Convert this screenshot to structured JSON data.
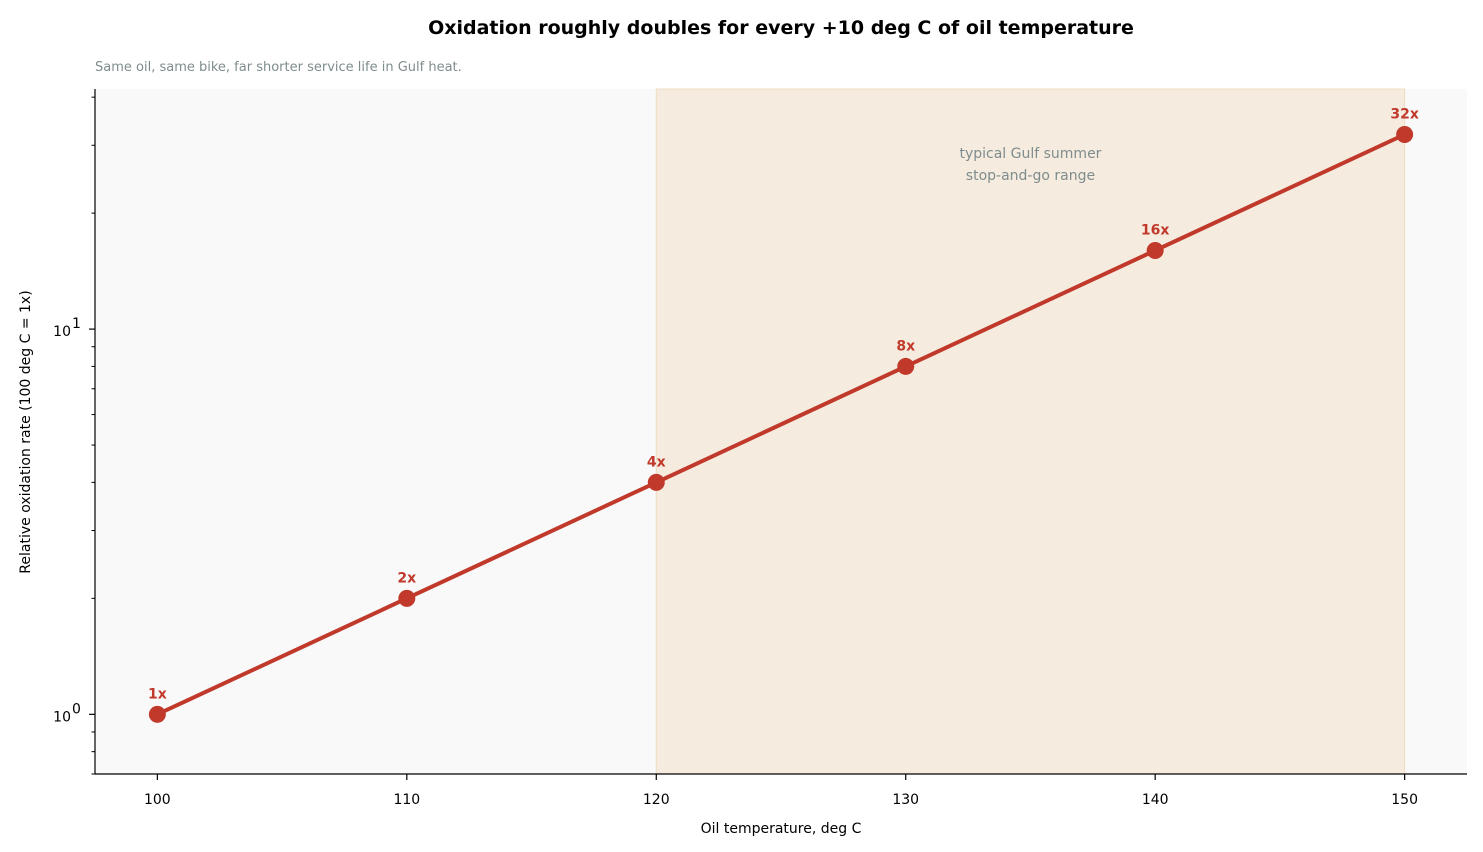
{
  "chart_data": {
    "type": "line",
    "title": "Oxidation roughly doubles for every +10 deg C of oil temperature",
    "subtitle": "Same oil, same bike, far shorter service life in Gulf heat.",
    "xlabel": "Oil temperature, deg C",
    "ylabel": "Relative oxidation rate (100 deg C = 1x)",
    "x": [
      100,
      110,
      120,
      130,
      140,
      150
    ],
    "series": [
      {
        "values": [
          1,
          2,
          4,
          8,
          16,
          32
        ],
        "labels": [
          "1x",
          "2x",
          "4x",
          "8x",
          "16x",
          "32x"
        ],
        "color": "#c0392b"
      }
    ],
    "xlim": [
      97.5,
      152.5
    ],
    "ylim": [
      0.7,
      42
    ],
    "yscale": "log",
    "x_ticks": [
      100,
      110,
      120,
      130,
      140,
      150
    ],
    "y_ticks": [
      {
        "value": 1,
        "base": "10",
        "exp": "0"
      },
      {
        "value": 10,
        "base": "10",
        "exp": "1"
      }
    ],
    "shaded_band": {
      "x_range": [
        120,
        150
      ],
      "label_lines": [
        "typical Gulf summer",
        "stop-and-go range"
      ],
      "label_x": 135,
      "label_y": 27,
      "color": "#f5ecdf"
    },
    "grid": false,
    "legend": "none"
  }
}
